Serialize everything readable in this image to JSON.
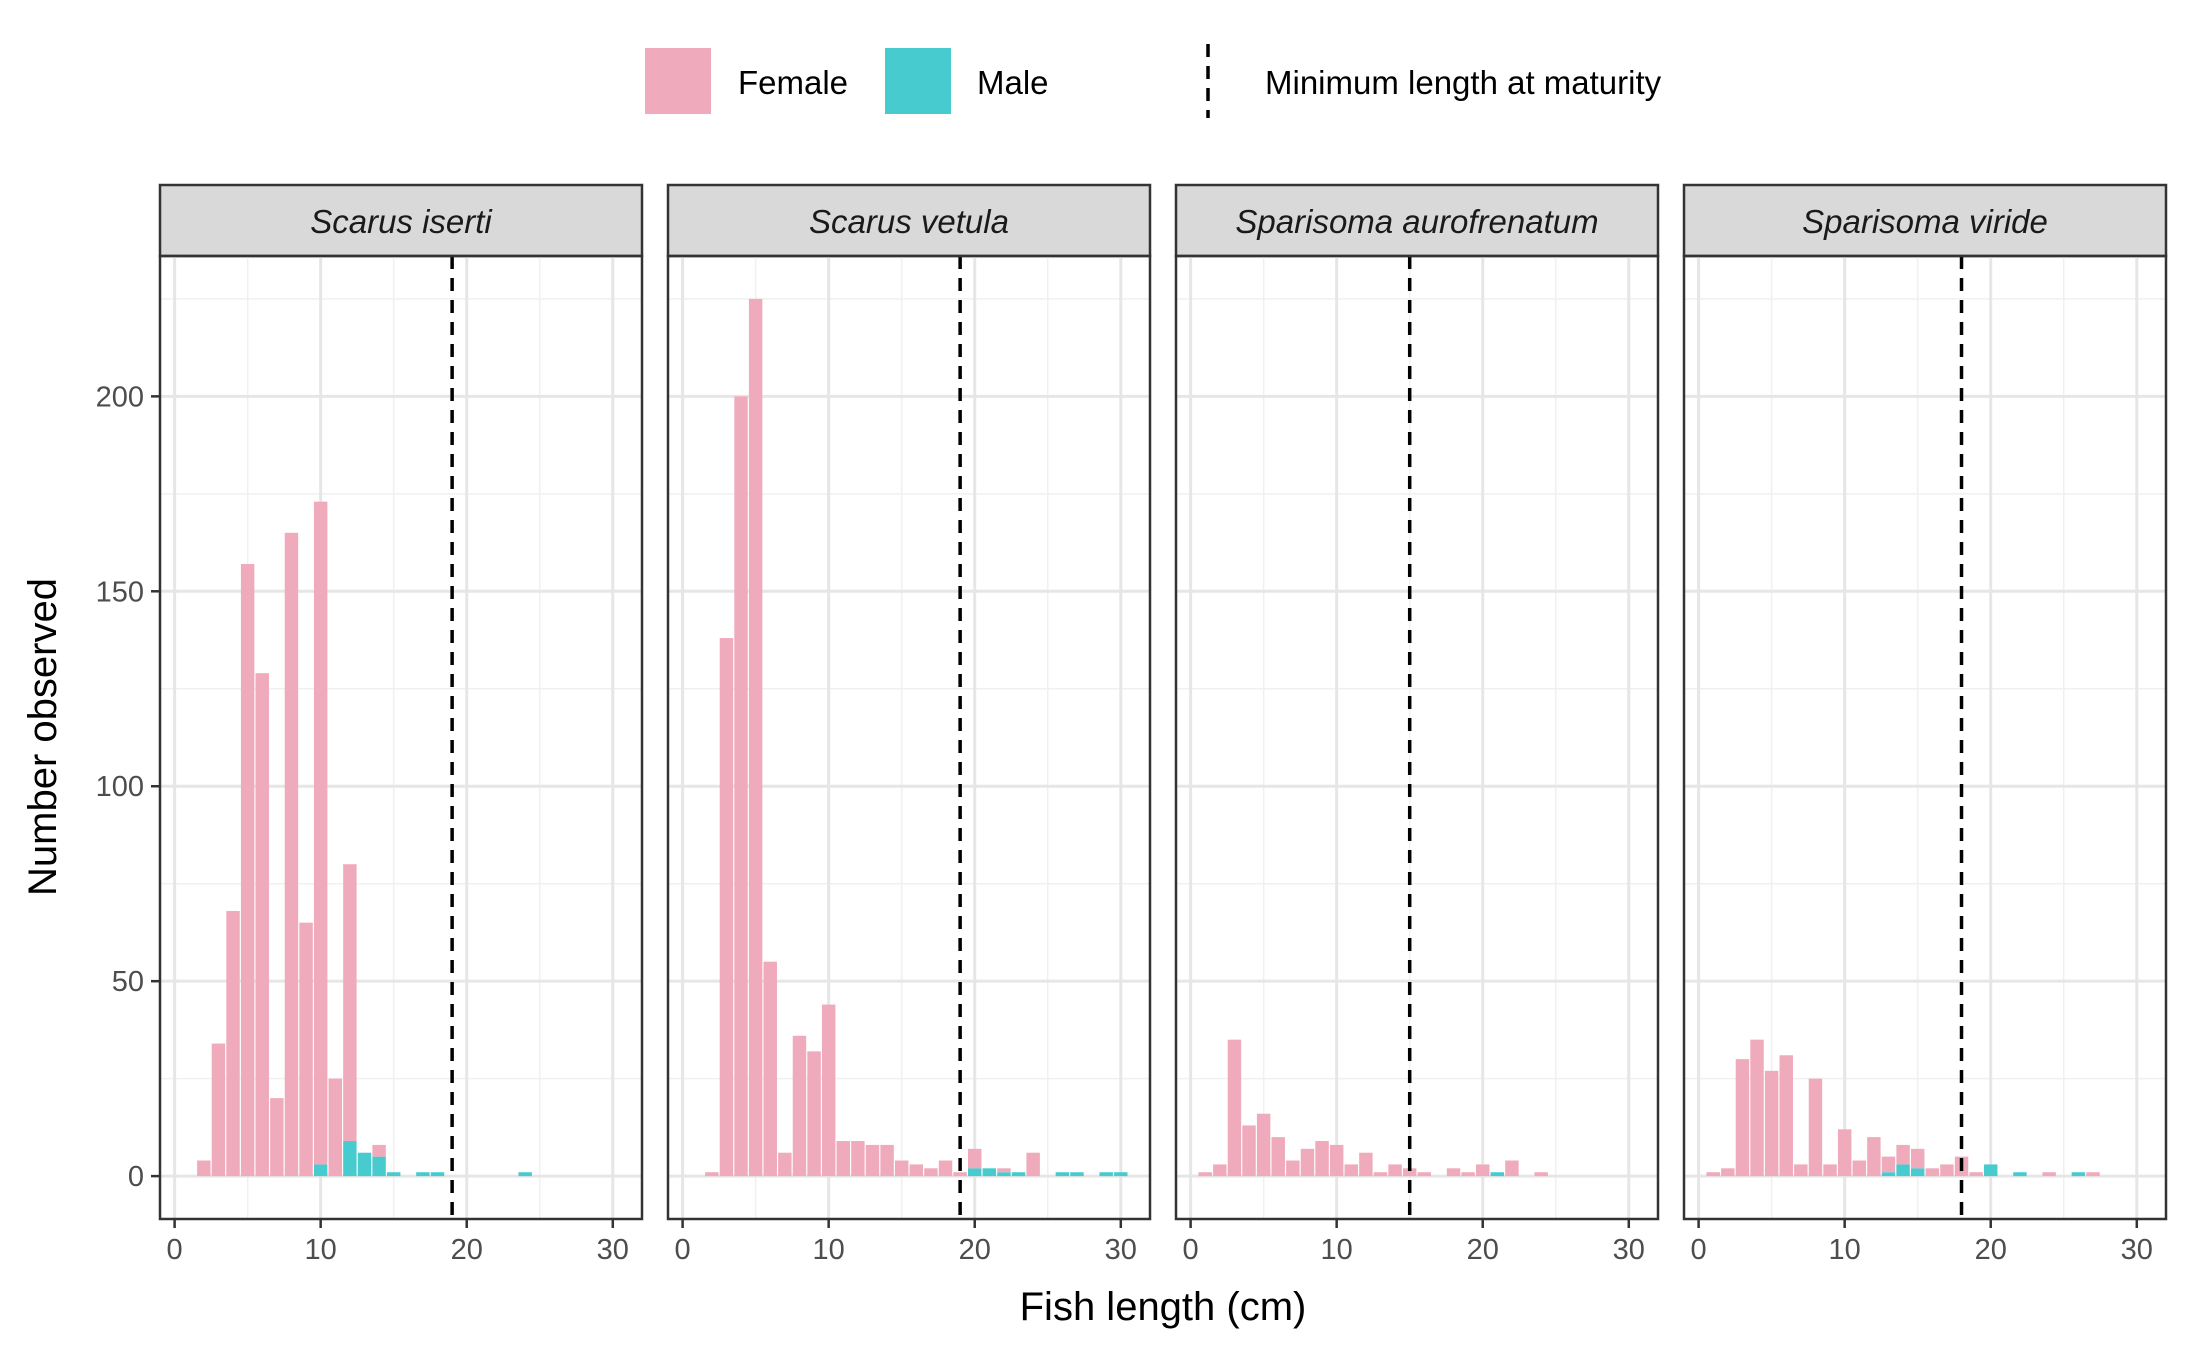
{
  "chart_data": {
    "type": "bar",
    "xlabel": "Fish length (cm)",
    "ylabel": "Number observed",
    "xlim": [
      -1,
      32
    ],
    "ylim": [
      -11,
      236
    ],
    "xticks": [
      "0",
      "10",
      "20",
      "30"
    ],
    "yticks": [
      "0",
      "50",
      "100",
      "150",
      "200"
    ],
    "stacked": true,
    "grid": true,
    "legend_position": "top",
    "colors": {
      "female": "#efaabb",
      "male": "#48cbcf",
      "line": "#000000"
    },
    "legend": {
      "female": "Female",
      "male": "Male",
      "line": "Minimum length at maturity"
    },
    "facets": [
      {
        "title": "Scarus iserti",
        "maturity_length": 19,
        "x": [
          2,
          3,
          4,
          5,
          6,
          7,
          8,
          9,
          10,
          11,
          12,
          13,
          14,
          15,
          16,
          17,
          18,
          19,
          20,
          21,
          22,
          23,
          24,
          25,
          26,
          27,
          28,
          29,
          30
        ],
        "female": [
          4,
          34,
          68,
          157,
          129,
          20,
          165,
          65,
          170,
          25,
          71,
          0,
          3,
          0,
          0,
          0,
          0,
          0,
          0,
          0,
          0,
          0,
          0,
          0,
          0,
          0,
          0,
          0,
          0
        ],
        "male": [
          0,
          0,
          0,
          0,
          0,
          0,
          0,
          0,
          3,
          0,
          9,
          6,
          5,
          1,
          0,
          1,
          1,
          0,
          0,
          0,
          0,
          0,
          1,
          0,
          0,
          0,
          0,
          0,
          0
        ]
      },
      {
        "title": "Scarus vetula",
        "maturity_length": 19,
        "x": [
          2,
          3,
          4,
          5,
          6,
          7,
          8,
          9,
          10,
          11,
          12,
          13,
          14,
          15,
          16,
          17,
          18,
          19,
          20,
          21,
          22,
          23,
          24,
          25,
          26,
          27,
          28,
          29,
          30
        ],
        "female": [
          1,
          138,
          200,
          225,
          55,
          6,
          36,
          32,
          44,
          9,
          9,
          8,
          8,
          4,
          3,
          2,
          4,
          1,
          5,
          0,
          1,
          0,
          6,
          0,
          0,
          0,
          0,
          0,
          0
        ],
        "male": [
          0,
          0,
          0,
          0,
          0,
          0,
          0,
          0,
          0,
          0,
          0,
          0,
          0,
          0,
          0,
          0,
          0,
          0,
          2,
          2,
          1,
          1,
          0,
          0,
          1,
          1,
          0,
          1,
          1
        ]
      },
      {
        "title": "Sparisoma aurofrenatum",
        "maturity_length": 15,
        "x": [
          1,
          2,
          3,
          4,
          5,
          6,
          7,
          8,
          9,
          10,
          11,
          12,
          13,
          14,
          15,
          16,
          17,
          18,
          19,
          20,
          21,
          22,
          23,
          24
        ],
        "female": [
          1,
          3,
          35,
          13,
          16,
          10,
          4,
          7,
          9,
          8,
          3,
          6,
          1,
          3,
          2,
          1,
          0,
          2,
          1,
          3,
          0,
          4,
          0,
          1
        ],
        "male": [
          0,
          0,
          0,
          0,
          0,
          0,
          0,
          0,
          0,
          0,
          0,
          0,
          0,
          0,
          0,
          0,
          0,
          0,
          0,
          0,
          1,
          0,
          0,
          0
        ]
      },
      {
        "title": "Sparisoma viride",
        "maturity_length": 18,
        "x": [
          1,
          2,
          3,
          4,
          5,
          6,
          7,
          8,
          9,
          10,
          11,
          12,
          13,
          14,
          15,
          16,
          17,
          18,
          19,
          20,
          21,
          22,
          23,
          24,
          25,
          26,
          27
        ],
        "female": [
          1,
          2,
          30,
          35,
          27,
          31,
          3,
          25,
          3,
          12,
          4,
          10,
          4,
          5,
          5,
          2,
          3,
          5,
          1,
          0,
          0,
          0,
          0,
          1,
          0,
          0,
          1
        ],
        "male": [
          0,
          0,
          0,
          0,
          0,
          0,
          0,
          0,
          0,
          0,
          0,
          0,
          1,
          3,
          2,
          0,
          0,
          0,
          0,
          3,
          0,
          1,
          0,
          0,
          0,
          1,
          0
        ]
      }
    ]
  }
}
